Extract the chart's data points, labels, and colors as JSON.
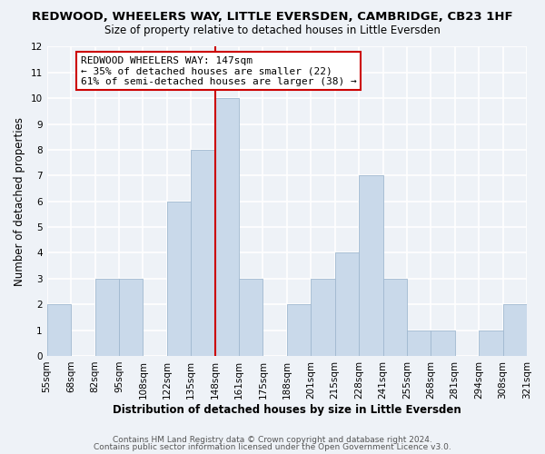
{
  "title": "REDWOOD, WHEELERS WAY, LITTLE EVERSDEN, CAMBRIDGE, CB23 1HF",
  "subtitle": "Size of property relative to detached houses in Little Eversden",
  "xlabel": "Distribution of detached houses by size in Little Eversden",
  "ylabel": "Number of detached properties",
  "footer_line1": "Contains HM Land Registry data © Crown copyright and database right 2024.",
  "footer_line2": "Contains public sector information licensed under the Open Government Licence v3.0.",
  "bin_labels": [
    "55sqm",
    "68sqm",
    "82sqm",
    "95sqm",
    "108sqm",
    "122sqm",
    "135sqm",
    "148sqm",
    "161sqm",
    "175sqm",
    "188sqm",
    "201sqm",
    "215sqm",
    "228sqm",
    "241sqm",
    "255sqm",
    "268sqm",
    "281sqm",
    "294sqm",
    "308sqm",
    "321sqm"
  ],
  "bar_heights": [
    2,
    0,
    3,
    3,
    0,
    6,
    8,
    10,
    3,
    0,
    2,
    3,
    4,
    7,
    3,
    1,
    1,
    0,
    1,
    2
  ],
  "bar_color": "#c9d9ea",
  "bar_edge_color": "#a0b8d0",
  "redline_index": 7,
  "redline_color": "#cc0000",
  "annotation_title": "REDWOOD WHEELERS WAY: 147sqm",
  "annotation_line1": "← 35% of detached houses are smaller (22)",
  "annotation_line2": "61% of semi-detached houses are larger (38) →",
  "annotation_box_facecolor": "#ffffff",
  "annotation_box_edgecolor": "#cc0000",
  "ylim": [
    0,
    12
  ],
  "yticks": [
    0,
    1,
    2,
    3,
    4,
    5,
    6,
    7,
    8,
    9,
    10,
    11,
    12
  ],
  "bg_color": "#eef2f7",
  "plot_bg_color": "#eef2f7",
  "grid_color": "#ffffff",
  "title_fontsize": 9.5,
  "subtitle_fontsize": 8.5,
  "ylabel_fontsize": 8.5,
  "xlabel_fontsize": 8.5,
  "tick_fontsize": 7.5,
  "annotation_fontsize": 8,
  "footer_fontsize": 6.5
}
